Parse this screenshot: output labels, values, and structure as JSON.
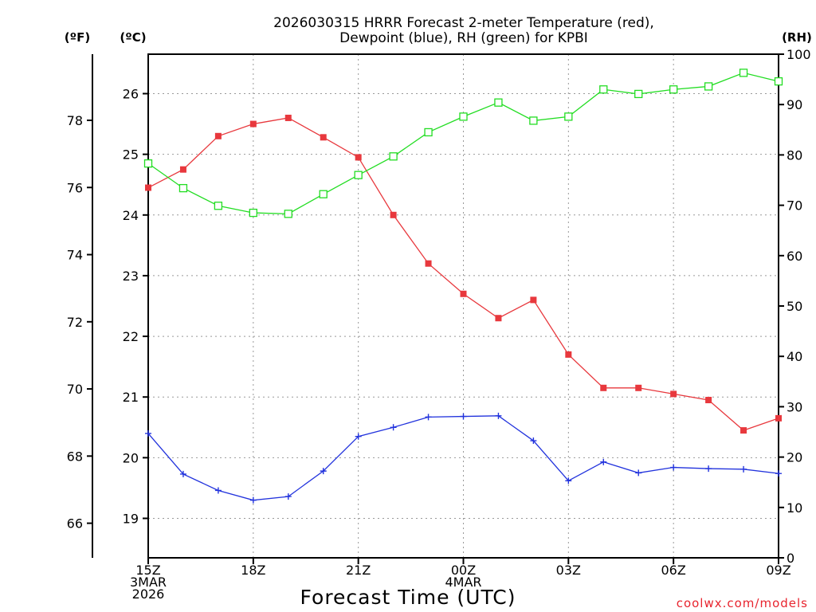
{
  "chart_data": {
    "type": "line",
    "title_lines": [
      "2026030315 HRRR Forecast 2-meter Temperature (red),",
      "Dewpoint (blue), RH (green) for KPBI"
    ],
    "units": {
      "fahrenheit": "(ºF)",
      "celsius": "(ºC)",
      "rh": "(RH)"
    },
    "xlabel": "Forecast Time (UTC)",
    "credit": "coolwx.com/models",
    "x_hours": [
      15,
      16,
      17,
      18,
      19,
      20,
      21,
      22,
      23,
      24,
      25,
      26,
      27,
      28,
      29,
      30,
      31,
      32,
      33
    ],
    "x_ticks": [
      {
        "hour": 15,
        "lines": [
          "15Z",
          "3MAR",
          "2026"
        ]
      },
      {
        "hour": 18,
        "lines": [
          "18Z"
        ]
      },
      {
        "hour": 21,
        "lines": [
          "21Z"
        ]
      },
      {
        "hour": 24,
        "lines": [
          "00Z",
          "4MAR"
        ]
      },
      {
        "hour": 27,
        "lines": [
          "03Z"
        ]
      },
      {
        "hour": 30,
        "lines": [
          "06Z"
        ]
      },
      {
        "hour": 33,
        "lines": [
          "09Z"
        ]
      }
    ],
    "xlim": [
      15,
      33
    ],
    "celsius_ylim": [
      18.35,
      26.65
    ],
    "celsius_ticks": [
      "19",
      "20",
      "21",
      "22",
      "23",
      "24",
      "25",
      "26"
    ],
    "fahrenheit_ylim": [
      64.97,
      79.97
    ],
    "fahrenheit_ticks": [
      "66",
      "68",
      "70",
      "72",
      "74",
      "76",
      "78"
    ],
    "rh_ylim": [
      0,
      100
    ],
    "rh_ticks": [
      "0",
      "10",
      "20",
      "30",
      "40",
      "50",
      "60",
      "70",
      "80",
      "90",
      "100"
    ],
    "grid": true,
    "series": [
      {
        "key": "temperature",
        "color": "#e8383d",
        "marker": "filled-square",
        "celsius": [
          24.45,
          24.75,
          25.3,
          25.5,
          25.6,
          25.28,
          24.95,
          24.0,
          23.2,
          22.7,
          22.3,
          22.6,
          21.7,
          21.15,
          21.15,
          21.05,
          20.95,
          20.45,
          20.65
        ]
      },
      {
        "key": "dewpoint",
        "color": "#2233dd",
        "marker": "plus",
        "celsius": [
          20.4,
          19.73,
          19.46,
          19.3,
          19.36,
          19.78,
          20.35,
          20.5,
          20.67,
          20.68,
          20.69,
          20.28,
          19.62,
          19.93,
          19.75,
          19.84,
          19.82,
          19.81,
          19.74
        ]
      },
      {
        "key": "rh",
        "color": "#22dd22",
        "marker": "open-square",
        "rh": [
          78.3,
          73.4,
          69.9,
          68.5,
          68.3,
          72.2,
          76.0,
          79.7,
          84.5,
          87.6,
          90.4,
          86.8,
          87.6,
          93.0,
          92.1,
          93.0,
          93.6,
          96.3,
          94.6
        ]
      }
    ]
  }
}
